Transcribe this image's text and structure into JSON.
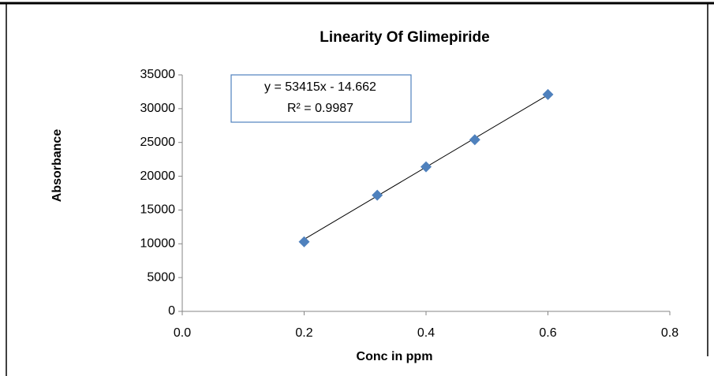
{
  "chart_data": {
    "type": "scatter",
    "title": "Linearity Of Glimepiride",
    "x_label": "Conc in ppm",
    "y_label": "Absorbance",
    "series": [
      {
        "name": "Absorbance",
        "color": "#4f81bd",
        "x": [
          0.2,
          0.32,
          0.4,
          0.48,
          0.6
        ],
        "values": [
          10300,
          17200,
          21400,
          25400,
          32100
        ]
      }
    ],
    "trendline": {
      "slope": 53415,
      "intercept": -14.662,
      "equation": "y = 53415x - 14.662",
      "r_squared": 0.9987,
      "r_squared_label": "R² = 0.9987",
      "color": "#000000"
    },
    "xlim": [
      0,
      0.8
    ],
    "xticks": [
      {
        "value": 0,
        "label": "0.0"
      },
      0.2,
      0.4,
      0.6,
      0.8
    ],
    "ylim": [
      0,
      35000
    ],
    "yticks": [
      0,
      5000,
      10000,
      15000,
      20000,
      25000,
      30000,
      35000
    ]
  }
}
